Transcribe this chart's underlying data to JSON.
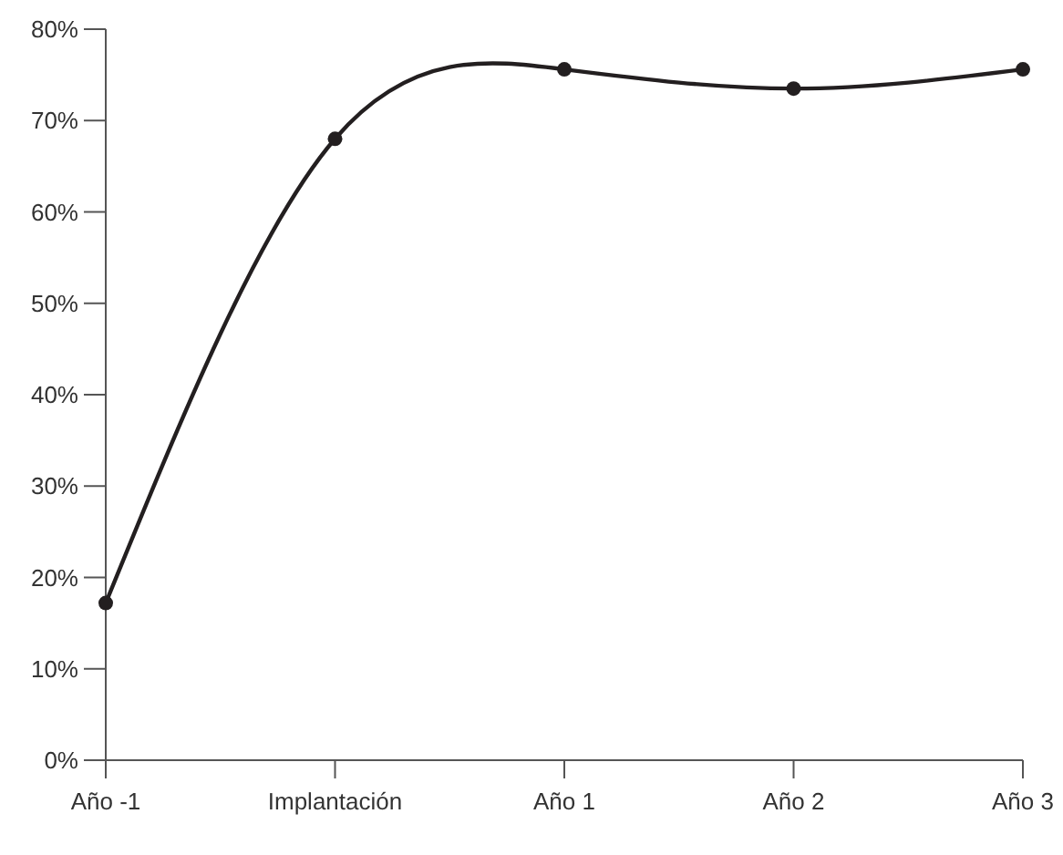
{
  "chart_data": {
    "type": "line",
    "categories": [
      "Año -1",
      "Implantación",
      "Año 1",
      "Año 2",
      "Año 3"
    ],
    "series": [
      {
        "color": "#231f20",
        "values": [
          17.2,
          68.0,
          75.6,
          73.5,
          75.6
        ]
      }
    ],
    "ylim": [
      0,
      80
    ],
    "yticks": [
      {
        "value": 0,
        "label": "0%"
      },
      {
        "value": 10,
        "label": "10%"
      },
      {
        "value": 20,
        "label": "20%"
      },
      {
        "value": 30,
        "label": "30%"
      },
      {
        "value": 40,
        "label": "40%"
      },
      {
        "value": 50,
        "label": "50%"
      },
      {
        "value": 60,
        "label": "60%"
      },
      {
        "value": 70,
        "label": "70%"
      },
      {
        "value": 80,
        "label": "80%"
      }
    ],
    "grid": false,
    "legend": false,
    "marker": "circle",
    "line_style": "solid"
  }
}
